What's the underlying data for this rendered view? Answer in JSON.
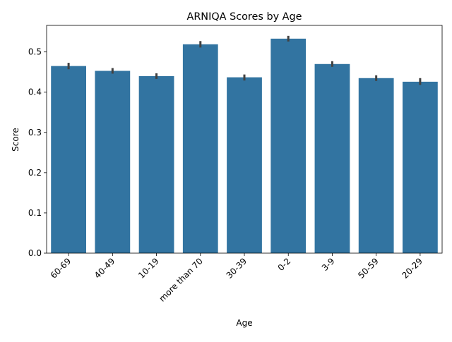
{
  "chart_data": {
    "type": "bar",
    "title": "ARNIQA Scores by Age",
    "xlabel": "Age",
    "ylabel": "Score",
    "categories": [
      "60-69",
      "40-49",
      "10-19",
      "more than 70",
      "30-39",
      "0-2",
      "3-9",
      "50-59",
      "20-29"
    ],
    "values": [
      0.465,
      0.453,
      0.44,
      0.519,
      0.437,
      0.533,
      0.47,
      0.435,
      0.426
    ],
    "error_low": [
      0.457,
      0.446,
      0.433,
      0.511,
      0.429,
      0.526,
      0.463,
      0.428,
      0.418
    ],
    "error_high": [
      0.473,
      0.46,
      0.447,
      0.527,
      0.444,
      0.54,
      0.477,
      0.442,
      0.435
    ],
    "ylim": [
      0,
      0.566
    ],
    "yticks": [
      0.0,
      0.1,
      0.2,
      0.3,
      0.4,
      0.5
    ],
    "ytick_labels": [
      "0.0",
      "0.1",
      "0.2",
      "0.3",
      "0.4",
      "0.5"
    ],
    "grid": false,
    "bar_color": "#3274a1",
    "error_color": "#424242"
  }
}
